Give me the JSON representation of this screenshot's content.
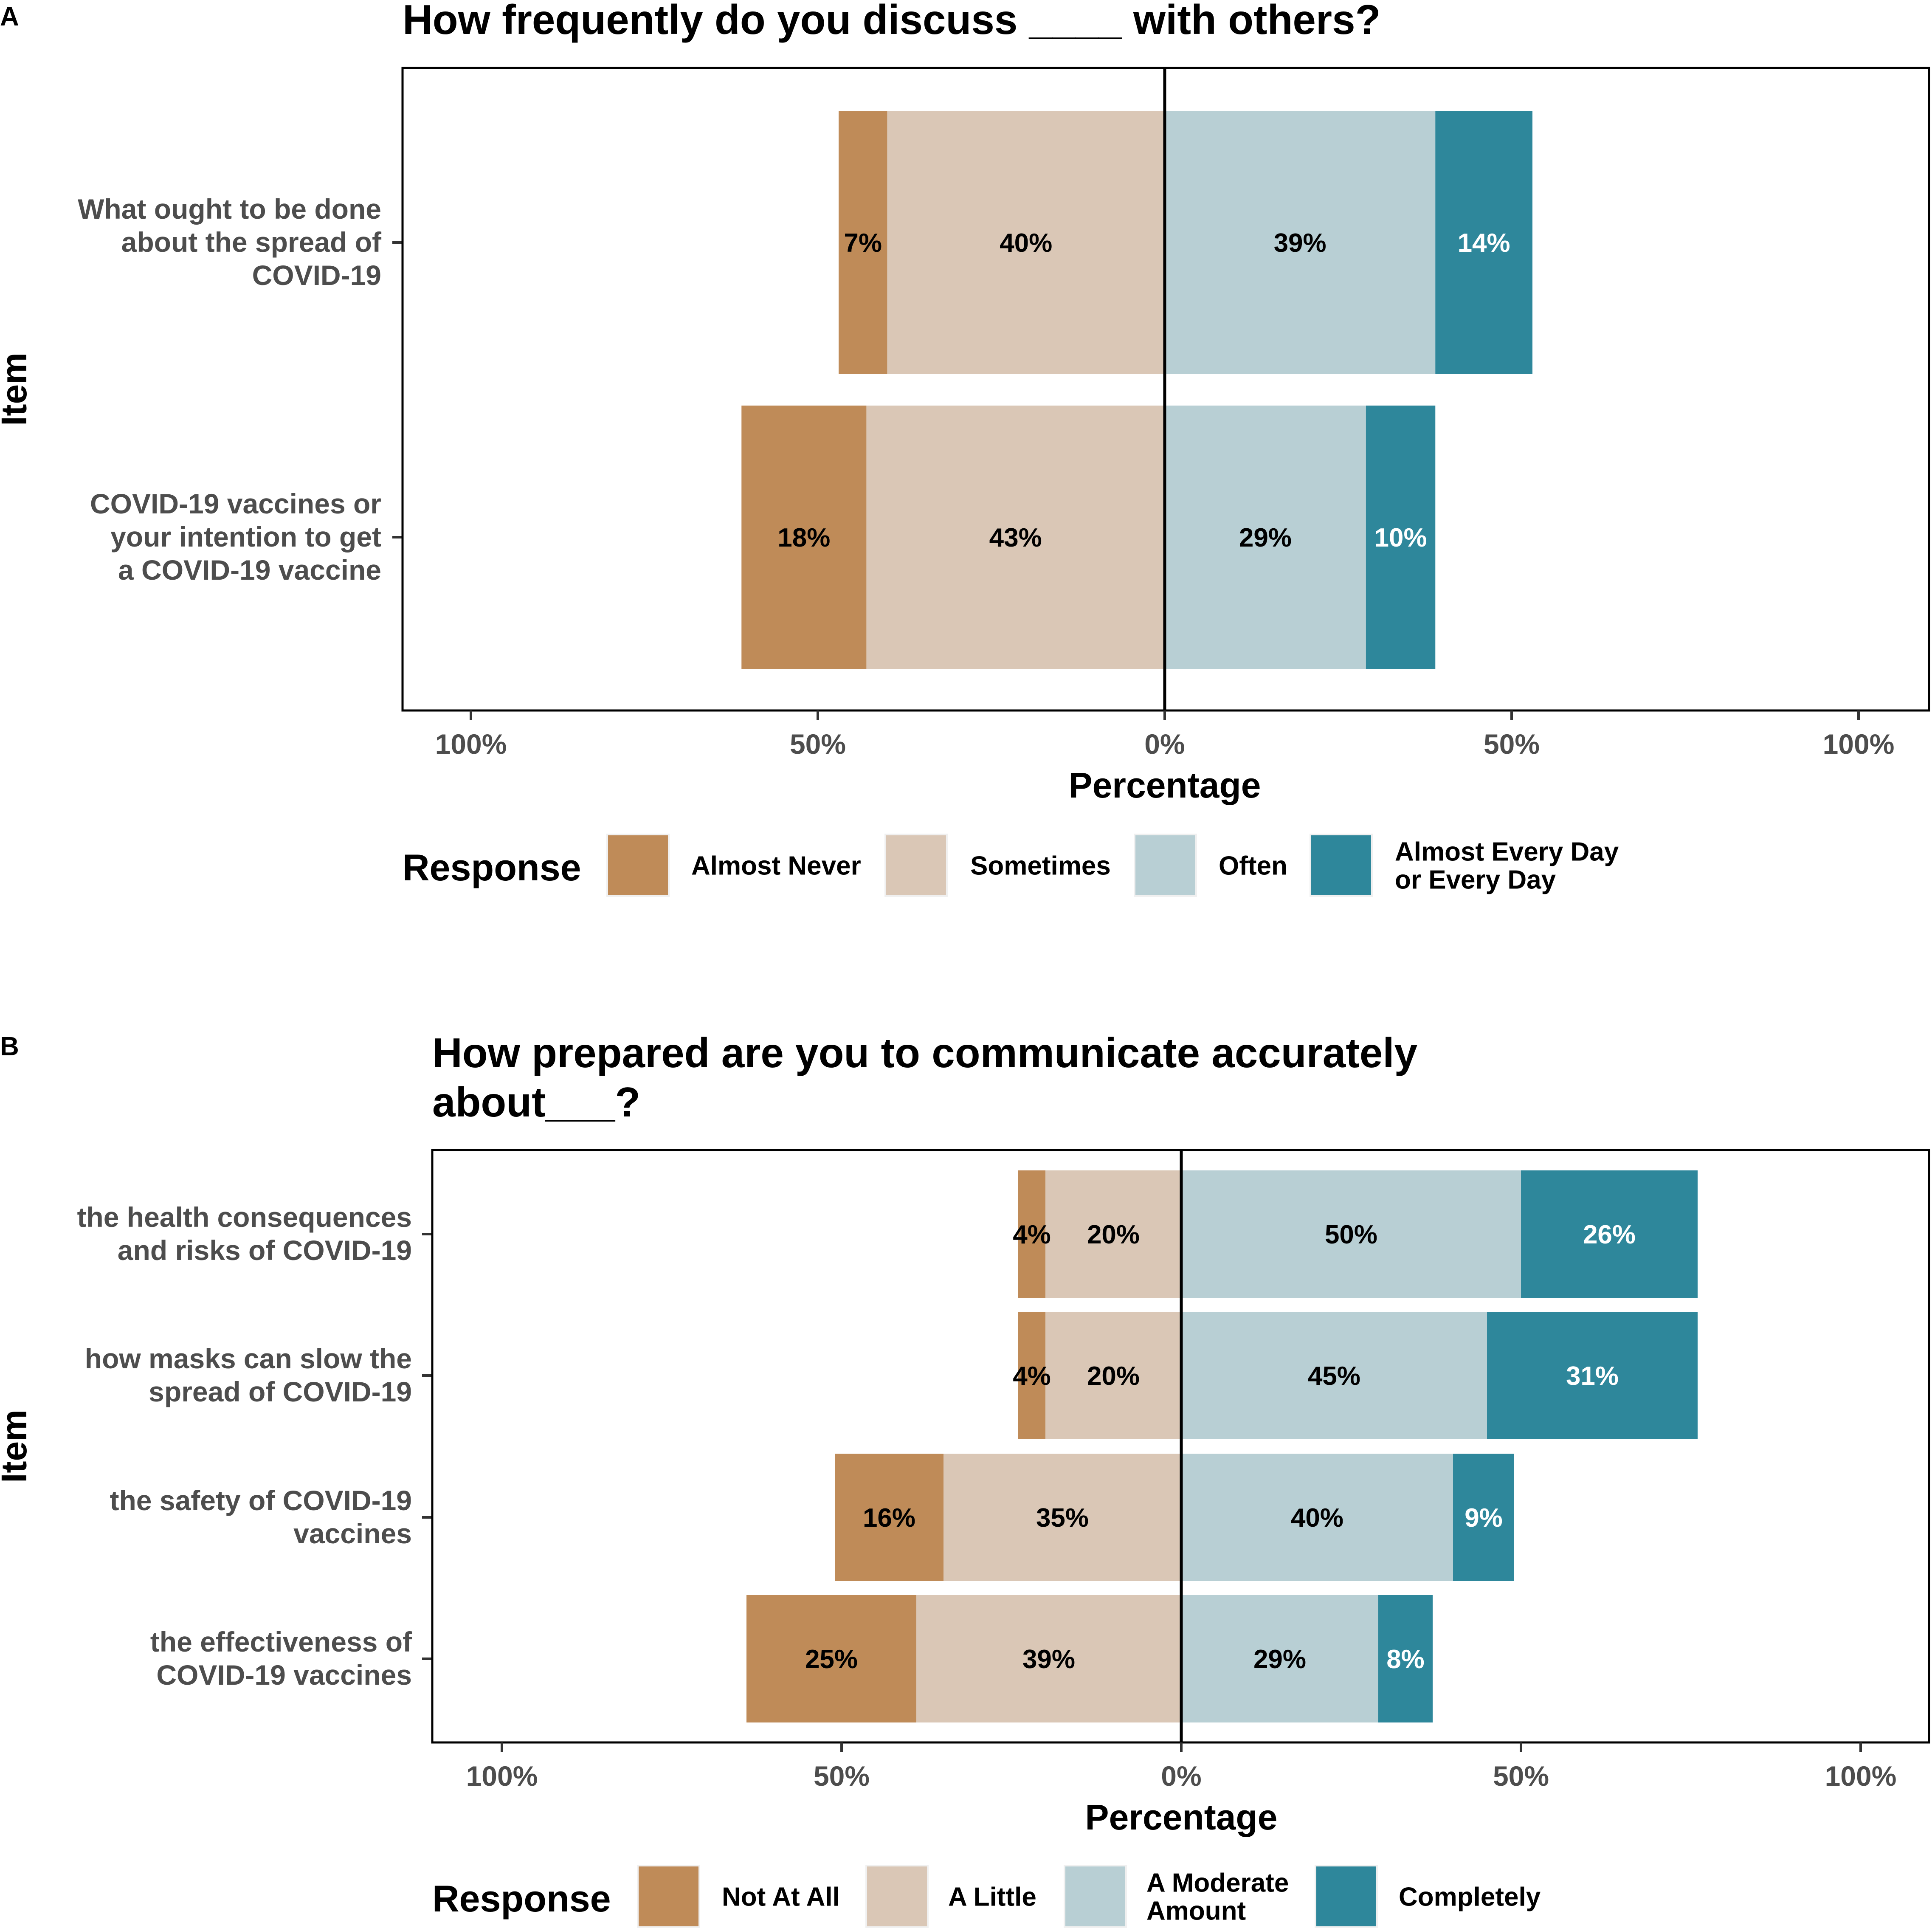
{
  "chart_data": [
    {
      "type": "bar",
      "subtype": "diverging-stacked-horizontal",
      "panel": "A",
      "title": "How frequently do you discuss ____ with others?",
      "xlabel": "Percentage",
      "ylabel": "Item",
      "xlim": [
        -100,
        100
      ],
      "xticks": [
        {
          "value": -100,
          "label": "100%"
        },
        {
          "value": -50,
          "label": "50%"
        },
        {
          "value": 0,
          "label": "0%"
        },
        {
          "value": 50,
          "label": "50%"
        },
        {
          "value": 100,
          "label": "100%"
        }
      ],
      "legend_title": "Response",
      "legend_position": "bottom",
      "categories": [
        "What ought to be done about the spread of COVID-19",
        "COVID-19 vaccines or your intention to get a COVID-19 vaccine"
      ],
      "category_lines": [
        [
          "What ought to be done",
          "about the spread of",
          "COVID-19"
        ],
        [
          "COVID-19 vaccines or",
          "your intention to get",
          "a COVID-19 vaccine"
        ]
      ],
      "series": [
        {
          "name": "Almost Never",
          "name_lines": [
            "Almost Never"
          ],
          "side": "negative",
          "color": "#bf8b58",
          "label_color": "#000000",
          "values": [
            7,
            18
          ],
          "labels": [
            "7%",
            "18%"
          ]
        },
        {
          "name": "Sometimes",
          "name_lines": [
            "Sometimes"
          ],
          "side": "negative",
          "color": "#dac7b6",
          "label_color": "#000000",
          "values": [
            40,
            43
          ],
          "labels": [
            "40%",
            "43%"
          ]
        },
        {
          "name": "Often",
          "name_lines": [
            "Often"
          ],
          "side": "positive",
          "color": "#b8cfd4",
          "label_color": "#000000",
          "values": [
            39,
            29
          ],
          "labels": [
            "39%",
            "29%"
          ]
        },
        {
          "name": "Almost Every Day or Every Day",
          "name_lines": [
            "Almost Every Day",
            "or Every Day"
          ],
          "side": "positive",
          "color": "#2e879b",
          "label_color": "#ffffff",
          "values": [
            14,
            10
          ],
          "labels": [
            "14%",
            "10%"
          ]
        }
      ]
    },
    {
      "type": "bar",
      "subtype": "diverging-stacked-horizontal",
      "panel": "B",
      "title": "How prepared are you to communicate accurately about___?",
      "title_lines": [
        "How prepared are you to communicate accurately",
        "about___?"
      ],
      "xlabel": "Percentage",
      "ylabel": "Item",
      "xlim": [
        -100,
        100
      ],
      "xticks": [
        {
          "value": -100,
          "label": "100%"
        },
        {
          "value": -50,
          "label": "50%"
        },
        {
          "value": 0,
          "label": "0%"
        },
        {
          "value": 50,
          "label": "50%"
        },
        {
          "value": 100,
          "label": "100%"
        }
      ],
      "legend_title": "Response",
      "legend_position": "bottom",
      "categories": [
        "the health consequences and risks of COVID-19",
        "how masks can slow the spread of COVID-19",
        "the safety of COVID-19 vaccines",
        "the effectiveness of COVID-19 vaccines"
      ],
      "category_lines": [
        [
          "the health consequences",
          "and risks of COVID-19"
        ],
        [
          "how masks can slow the",
          "spread of COVID-19"
        ],
        [
          "the safety of COVID-19",
          "vaccines"
        ],
        [
          "the effectiveness of",
          "COVID-19 vaccines"
        ]
      ],
      "series": [
        {
          "name": "Not At All",
          "name_lines": [
            "Not At All"
          ],
          "side": "negative",
          "color": "#bf8b58",
          "label_color": "#000000",
          "values": [
            4,
            4,
            16,
            25
          ],
          "labels": [
            "4%",
            "4%",
            "16%",
            "25%"
          ]
        },
        {
          "name": "A Little",
          "name_lines": [
            "A Little"
          ],
          "side": "negative",
          "color": "#dac7b6",
          "label_color": "#000000",
          "values": [
            20,
            20,
            35,
            39
          ],
          "labels": [
            "20%",
            "20%",
            "35%",
            "39%"
          ]
        },
        {
          "name": "A Moderate Amount",
          "name_lines": [
            "A Moderate",
            "Amount"
          ],
          "side": "positive",
          "color": "#b8cfd4",
          "label_color": "#000000",
          "values": [
            50,
            45,
            40,
            29
          ],
          "labels": [
            "50%",
            "45%",
            "40%",
            "29%"
          ]
        },
        {
          "name": "Completely",
          "name_lines": [
            "Completely"
          ],
          "side": "positive",
          "color": "#2e879b",
          "label_color": "#ffffff",
          "values": [
            26,
            31,
            9,
            8
          ],
          "labels": [
            "26%",
            "31%",
            "9%",
            "8%"
          ]
        }
      ]
    }
  ]
}
